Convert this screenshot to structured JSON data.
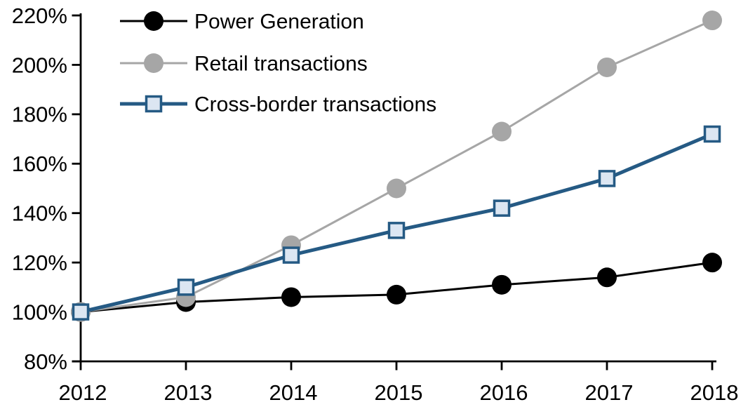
{
  "figure": {
    "background": "#ffffff",
    "axis_color": "#000000",
    "text_color": "#000000"
  },
  "chart_data": {
    "type": "line",
    "title": "",
    "xlabel": "",
    "ylabel": "",
    "grid": false,
    "x_categories": [
      "2012",
      "2013",
      "2014",
      "2015",
      "2016",
      "2017",
      "2018"
    ],
    "y_axis": {
      "min": 80,
      "max": 220,
      "tick_step": 20,
      "unit": "%",
      "tick_labels": [
        "80%",
        "100%",
        "120%",
        "140%",
        "160%",
        "180%",
        "200%",
        "220%"
      ]
    },
    "legend": {
      "position": "top-left-inside",
      "entries": [
        "Power Generation",
        "Retail transactions",
        "Cross-border transactions"
      ]
    },
    "series": [
      {
        "name": "Power Generation",
        "line_color": "#000000",
        "line_width": 3,
        "marker": "circle",
        "marker_fill": "#000000",
        "marker_stroke": "none",
        "values": [
          100,
          104,
          106,
          107,
          111,
          114,
          120
        ]
      },
      {
        "name": "Retail transactions",
        "line_color": "#a6a6a6",
        "line_width": 3,
        "marker": "circle",
        "marker_fill": "#a6a6a6",
        "marker_stroke": "none",
        "values": [
          100,
          106,
          127,
          150,
          173,
          199,
          218
        ]
      },
      {
        "name": "Cross-border transactions",
        "line_color": "#255a84",
        "line_width": 5,
        "marker": "square",
        "marker_fill": "#dce6f2",
        "marker_stroke": "#255a84",
        "values": [
          100,
          110,
          123,
          133,
          142,
          154,
          172
        ]
      }
    ]
  }
}
